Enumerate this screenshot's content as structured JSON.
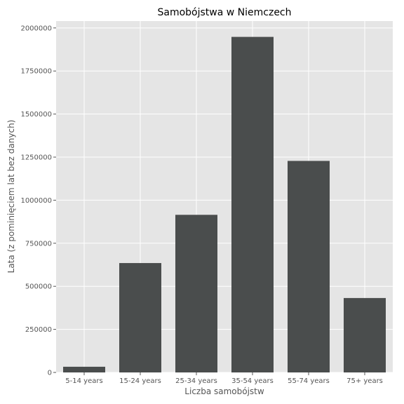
{
  "chart_data": {
    "type": "bar",
    "title": "Samobójstwa w Niemczech",
    "xlabel": "Liczba samobójstw",
    "ylabel": "Lata (z pominięciem lat bez danych)",
    "categories": [
      "5-14 years",
      "15-24 years",
      "25-34 years",
      "35-54 years",
      "55-74 years",
      "75+ years"
    ],
    "values": [
      33000,
      635000,
      915000,
      1948000,
      1228000,
      432000
    ],
    "ylim": [
      0,
      2040000
    ],
    "yticks": [
      0,
      250000,
      500000,
      750000,
      1000000,
      1250000,
      1500000,
      1750000,
      2000000
    ],
    "ytick_labels": [
      "0",
      "250000",
      "500000",
      "750000",
      "1000000",
      "1250000",
      "1500000",
      "1750000",
      "2000000"
    ],
    "grid": true,
    "style": "ggplot",
    "colors": {
      "plot_background": "#e5e5e5",
      "grid": "#ffffff",
      "bar": "#4a4d4d",
      "text": "#555555",
      "title": "#000000"
    }
  }
}
